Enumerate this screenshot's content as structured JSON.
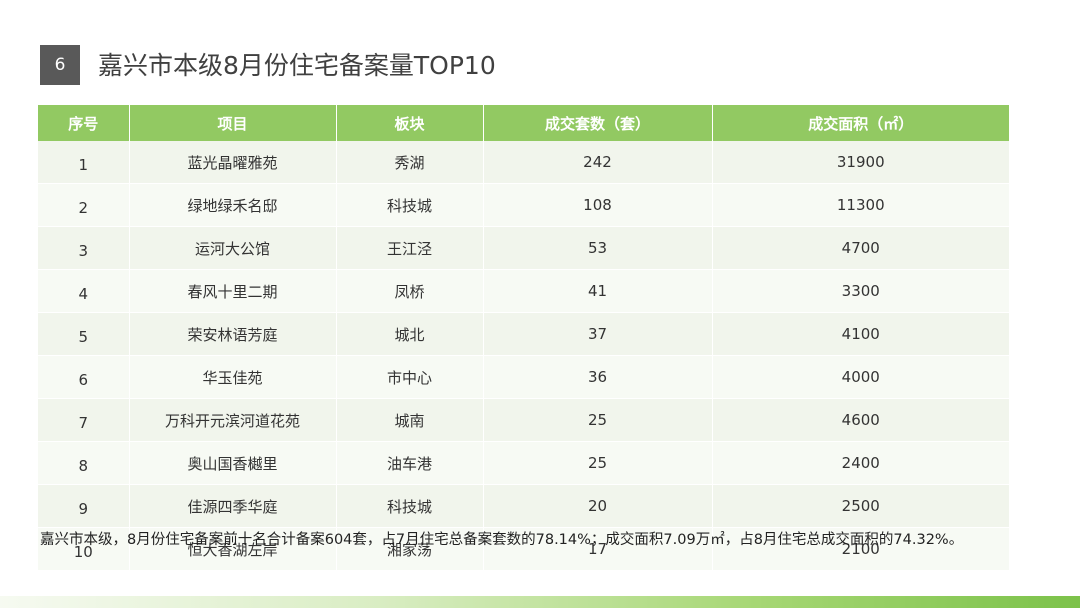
{
  "slide": {
    "badge_number": "6",
    "title": "嘉兴市本级8月份住宅备案量TOP10"
  },
  "table": {
    "headers": [
      "序号",
      "项目",
      "板块",
      "成交套数（套）",
      "成交面积（㎡）"
    ],
    "rows": [
      [
        "1",
        "蓝光晶曜雅苑",
        "秀湖",
        "242",
        "31900"
      ],
      [
        "2",
        "绿地绿禾名邸",
        "科技城",
        "108",
        "11300"
      ],
      [
        "3",
        "运河大公馆",
        "王江泾",
        "53",
        "4700"
      ],
      [
        "4",
        "春风十里二期",
        "凤桥",
        "41",
        "3300"
      ],
      [
        "5",
        "荣安林语芳庭",
        "城北",
        "37",
        "4100"
      ],
      [
        "6",
        "华玉佳苑",
        "市中心",
        "36",
        "4000"
      ],
      [
        "7",
        "万科开元滨河道花苑",
        "城南",
        "25",
        "4600"
      ],
      [
        "8",
        "奥山国香樾里",
        "油车港",
        "25",
        "2400"
      ],
      [
        "9",
        "佳源四季华庭",
        "科技城",
        "20",
        "2500"
      ],
      [
        "10",
        "恒大香湖左岸",
        "湘家荡",
        "17",
        "2100"
      ]
    ]
  },
  "summary": "嘉兴市本级，8月份住宅备案前十名合计备案604套，占7月住宅总备案套数的78.14%；成交面积7.09万㎡，占8月住宅总成交面积的74.32%。",
  "colors": {
    "header_green": "#92c962",
    "badge_gray": "#595959",
    "row_tint": "#f1f5ec"
  }
}
